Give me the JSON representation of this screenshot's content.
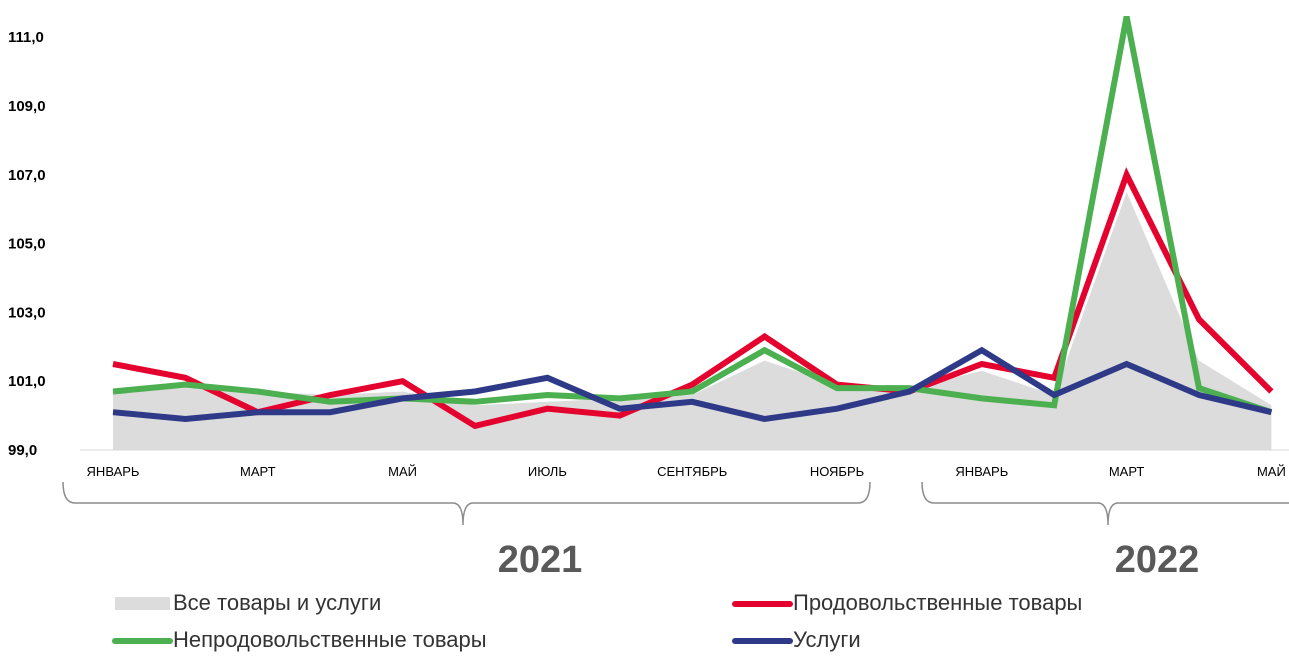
{
  "chart_data": {
    "type": "line",
    "title": "",
    "xlabel": "",
    "ylabel": "",
    "ylim": [
      99.0,
      111.5
    ],
    "yticks": [
      "99,0",
      "101,0",
      "103,0",
      "105,0",
      "107,0",
      "109,0",
      "111,0"
    ],
    "ytick_values": [
      99,
      101,
      103,
      105,
      107,
      109,
      111
    ],
    "x_count": 17,
    "x_tick_labels": [
      {
        "index": 0,
        "label": "ЯНВАРЬ"
      },
      {
        "index": 2,
        "label": "МАРТ"
      },
      {
        "index": 4,
        "label": "МАЙ"
      },
      {
        "index": 6,
        "label": "ИЮЛЬ"
      },
      {
        "index": 8,
        "label": "СЕНТЯБРЬ"
      },
      {
        "index": 10,
        "label": "НОЯБРЬ"
      },
      {
        "index": 12,
        "label": "ЯНВАРЬ"
      },
      {
        "index": 14,
        "label": "МАРТ"
      },
      {
        "index": 16,
        "label": "МАЙ"
      }
    ],
    "year_groups": [
      {
        "label": "2021",
        "from": 0,
        "to": 11
      },
      {
        "label": "2022",
        "from": 12,
        "to": 16
      }
    ],
    "legend_position": "bottom",
    "series": [
      {
        "name": "Все товары и услуги",
        "kind": "area",
        "color": "#dcdcdc",
        "values": [
          100.7,
          100.8,
          100.7,
          100.6,
          100.7,
          100.3,
          100.4,
          100.5,
          100.6,
          101.6,
          100.9,
          100.8,
          101.3,
          100.6,
          106.5,
          101.6,
          100.3
        ]
      },
      {
        "name": "Продовольственные товары",
        "kind": "line",
        "color": "#e4032e",
        "values": [
          101.5,
          101.1,
          100.1,
          100.6,
          101.0,
          99.7,
          100.2,
          100.0,
          100.9,
          102.3,
          100.9,
          100.7,
          101.5,
          101.1,
          107.0,
          102.8,
          100.7
        ]
      },
      {
        "name": "Непродовольственные товары",
        "kind": "line",
        "color": "#4caf50",
        "values": [
          100.7,
          100.9,
          100.7,
          100.4,
          100.5,
          100.4,
          100.6,
          100.5,
          100.7,
          101.9,
          100.8,
          100.8,
          100.5,
          100.3,
          111.6,
          100.8,
          100.1
        ]
      },
      {
        "name": "Услуги",
        "kind": "line",
        "color": "#2e3a87",
        "values": [
          100.1,
          99.9,
          100.1,
          100.1,
          100.5,
          100.7,
          101.1,
          100.2,
          100.4,
          99.9,
          100.2,
          100.7,
          101.9,
          100.6,
          101.5,
          100.6,
          100.1
        ]
      }
    ]
  }
}
